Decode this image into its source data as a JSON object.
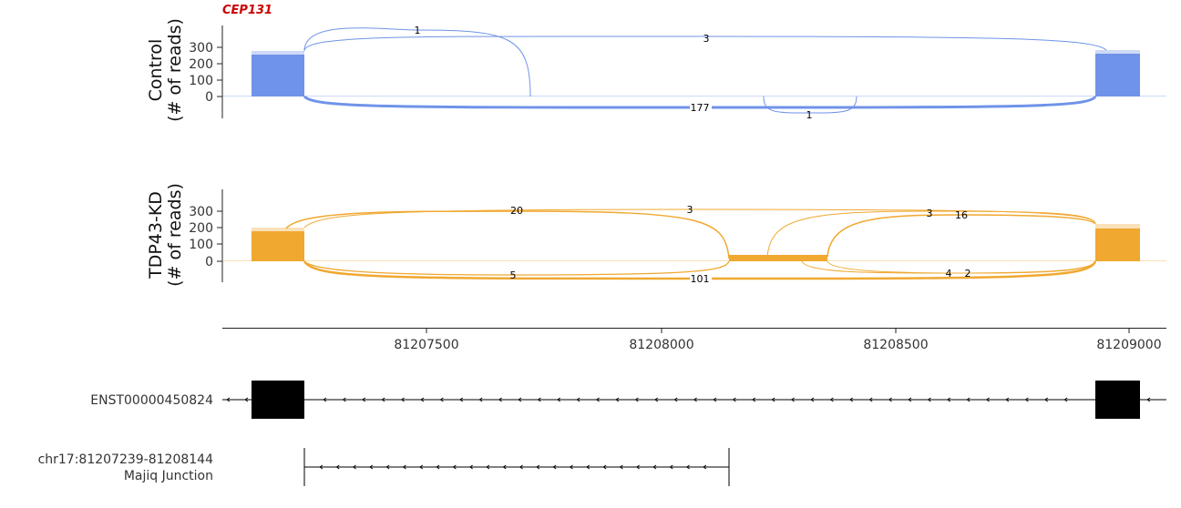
{
  "gene": {
    "name": "CEP131",
    "color": "#cc0000"
  },
  "panels": [
    {
      "key": "control",
      "label_line1": "Control",
      "label_line2": "(# of reads)",
      "color": "#6f93e8",
      "yticks": [
        "300",
        "200",
        "100",
        "0"
      ],
      "junction_counts": [
        "1",
        "3",
        "177",
        "1"
      ]
    },
    {
      "key": "kd",
      "label_line1": "TDP43-KD",
      "label_line2": "(# of reads)",
      "color": "#f0a830",
      "yticks": [
        "300",
        "200",
        "100",
        "0"
      ],
      "junction_counts": [
        "20",
        "3",
        "3",
        "16",
        "5",
        "101",
        "4",
        "2"
      ]
    }
  ],
  "x_axis": {
    "ticks": [
      "81207500",
      "81208000",
      "81208500",
      "81209000"
    ]
  },
  "transcript": {
    "id": "ENST00000450824"
  },
  "junction_track": {
    "line1": "chr17:81207239-81208144",
    "line2": "Majiq Junction"
  },
  "chart_data": {
    "type": "sashimi",
    "gene": "CEP131",
    "region": "chr17",
    "xlim": [
      81207075,
      81209100
    ],
    "x_ticks": [
      81207500,
      81208000,
      81208500,
      81209000
    ],
    "y_ticks": [
      0,
      100,
      200,
      300
    ],
    "series": [
      {
        "name": "Control",
        "coverage_blocks": [
          {
            "start": 81207137,
            "end": 81207239,
            "reads": 255
          },
          {
            "start": 81208930,
            "end": 81209022,
            "reads": 260
          }
        ],
        "junctions": [
          {
            "start": 81207239,
            "end": 81207730,
            "reads": 1
          },
          {
            "start": 81207239,
            "end": 81208930,
            "reads": 3
          },
          {
            "start": 81207239,
            "end": 81208930,
            "reads": 177
          },
          {
            "start": 81208220,
            "end": 81208410,
            "reads": 1
          }
        ]
      },
      {
        "name": "TDP43-KD",
        "coverage_blocks": [
          {
            "start": 81207137,
            "end": 81207239,
            "reads": 195
          },
          {
            "start": 81208140,
            "end": 81208360,
            "reads": 40
          },
          {
            "start": 81208930,
            "end": 81209022,
            "reads": 205
          }
        ],
        "junctions": [
          {
            "start": 81207239,
            "end": 81208144,
            "reads": 20
          },
          {
            "start": 81207239,
            "end": 81208930,
            "reads": 3
          },
          {
            "start": 81208220,
            "end": 81208930,
            "reads": 3
          },
          {
            "start": 81208360,
            "end": 81208930,
            "reads": 16
          },
          {
            "start": 81207239,
            "end": 81208144,
            "reads": 5
          },
          {
            "start": 81207239,
            "end": 81208930,
            "reads": 101
          },
          {
            "start": 81208300,
            "end": 81208930,
            "reads": 4
          },
          {
            "start": 81208360,
            "end": 81208930,
            "reads": 2
          }
        ]
      }
    ],
    "transcript_exons": [
      {
        "start": 81207137,
        "end": 81207239
      },
      {
        "start": 81208930,
        "end": 81209022
      }
    ],
    "majiq_junction": {
      "start": 81207239,
      "end": 81208144
    }
  }
}
